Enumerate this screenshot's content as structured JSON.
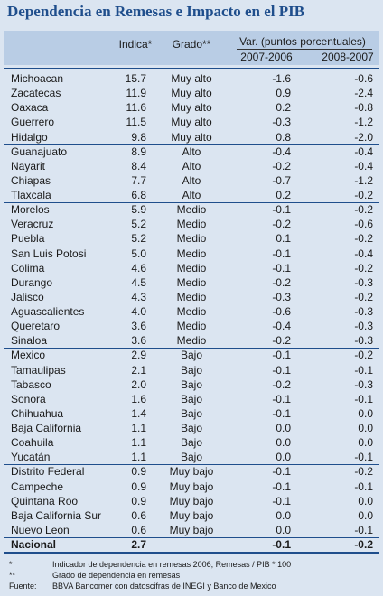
{
  "title": "Dependencia en Remesas e Impacto en el PIB",
  "header": {
    "index": "Indica*",
    "grade": "Grado**",
    "var": "Var. (puntos porcentuales)",
    "period1": "2007-2006",
    "period2": "2008-2007"
  },
  "groups": [
    [
      [
        "Michoacan",
        "15.7",
        "Muy alto",
        "-1.6",
        "-0.6"
      ],
      [
        "Zacatecas",
        "11.9",
        "Muy alto",
        "0.9",
        "-2.4"
      ],
      [
        "Oaxaca",
        "11.6",
        "Muy alto",
        "0.2",
        "-0.8"
      ],
      [
        "Guerrero",
        "11.5",
        "Muy alto",
        "-0.3",
        "-1.2"
      ],
      [
        "Hidalgo",
        "9.8",
        "Muy alto",
        "0.8",
        "-2.0"
      ]
    ],
    [
      [
        "Guanajuato",
        "8.9",
        "Alto",
        "-0.4",
        "-0.4"
      ],
      [
        "Nayarit",
        "8.4",
        "Alto",
        "-0.2",
        "-0.4"
      ],
      [
        "Chiapas",
        "7.7",
        "Alto",
        "-0.7",
        "-1.2"
      ],
      [
        "Tlaxcala",
        "6.8",
        "Alto",
        "0.2",
        "-0.2"
      ]
    ],
    [
      [
        "Morelos",
        "5.9",
        "Medio",
        "-0.1",
        "-0.2"
      ],
      [
        "Veracruz",
        "5.2",
        "Medio",
        "-0.2",
        "-0.6"
      ],
      [
        "Puebla",
        "5.2",
        "Medio",
        "0.1",
        "-0.2"
      ],
      [
        "San Luis Potosi",
        "5.0",
        "Medio",
        "-0.1",
        "-0.4"
      ],
      [
        "Colima",
        "4.6",
        "Medio",
        "-0.1",
        "-0.2"
      ],
      [
        "Durango",
        "4.5",
        "Medio",
        "-0.2",
        "-0.3"
      ],
      [
        "Jalisco",
        "4.3",
        "Medio",
        "-0.3",
        "-0.2"
      ],
      [
        "Aguascalientes",
        "4.0",
        "Medio",
        "-0.6",
        "-0.3"
      ],
      [
        "Queretaro",
        "3.6",
        "Medio",
        "-0.4",
        "-0.3"
      ],
      [
        "Sinaloa",
        "3.6",
        "Medio",
        "-0.2",
        "-0.3"
      ]
    ],
    [
      [
        "Mexico",
        "2.9",
        "Bajo",
        "-0.1",
        "-0.2"
      ],
      [
        "Tamaulipas",
        "2.1",
        "Bajo",
        "-0.1",
        "-0.1"
      ],
      [
        "Tabasco",
        "2.0",
        "Bajo",
        "-0.2",
        "-0.3"
      ],
      [
        "Sonora",
        "1.6",
        "Bajo",
        "-0.1",
        "-0.1"
      ],
      [
        "Chihuahua",
        "1.4",
        "Bajo",
        "-0.1",
        "0.0"
      ],
      [
        "Baja California",
        "1.1",
        "Bajo",
        "0.0",
        "0.0"
      ],
      [
        "Coahuila",
        "1.1",
        "Bajo",
        "0.0",
        "0.0"
      ],
      [
        "Yucatán",
        "1.1",
        "Bajo",
        "0.0",
        "-0.1"
      ]
    ],
    [
      [
        "Distrito Federal",
        "0.9",
        "Muy bajo",
        "-0.1",
        "-0.2"
      ],
      [
        "Campeche",
        "0.9",
        "Muy bajo",
        "-0.1",
        "-0.1"
      ],
      [
        "Quintana Roo",
        "0.9",
        "Muy bajo",
        "-0.1",
        "0.0"
      ],
      [
        "Baja California Sur",
        "0.6",
        "Muy bajo",
        "0.0",
        "0.0"
      ],
      [
        "Nuevo Leon",
        "0.6",
        "Muy bajo",
        "0.0",
        "-0.1"
      ]
    ]
  ],
  "total": {
    "label": "Nacional",
    "index": "2.7",
    "period1": "-0.1",
    "period2": "-0.2"
  },
  "footnotes": [
    {
      "mark": "*",
      "text": "Indicador de dependencia en remesas 2006, Remesas / PIB * 100"
    },
    {
      "mark": "**",
      "text": "Grado de dependencia en remesas"
    },
    {
      "mark": "Fuente:",
      "text": "BBVA Bancomer con datoscifras de INEGI y Banco de Mexico"
    }
  ]
}
